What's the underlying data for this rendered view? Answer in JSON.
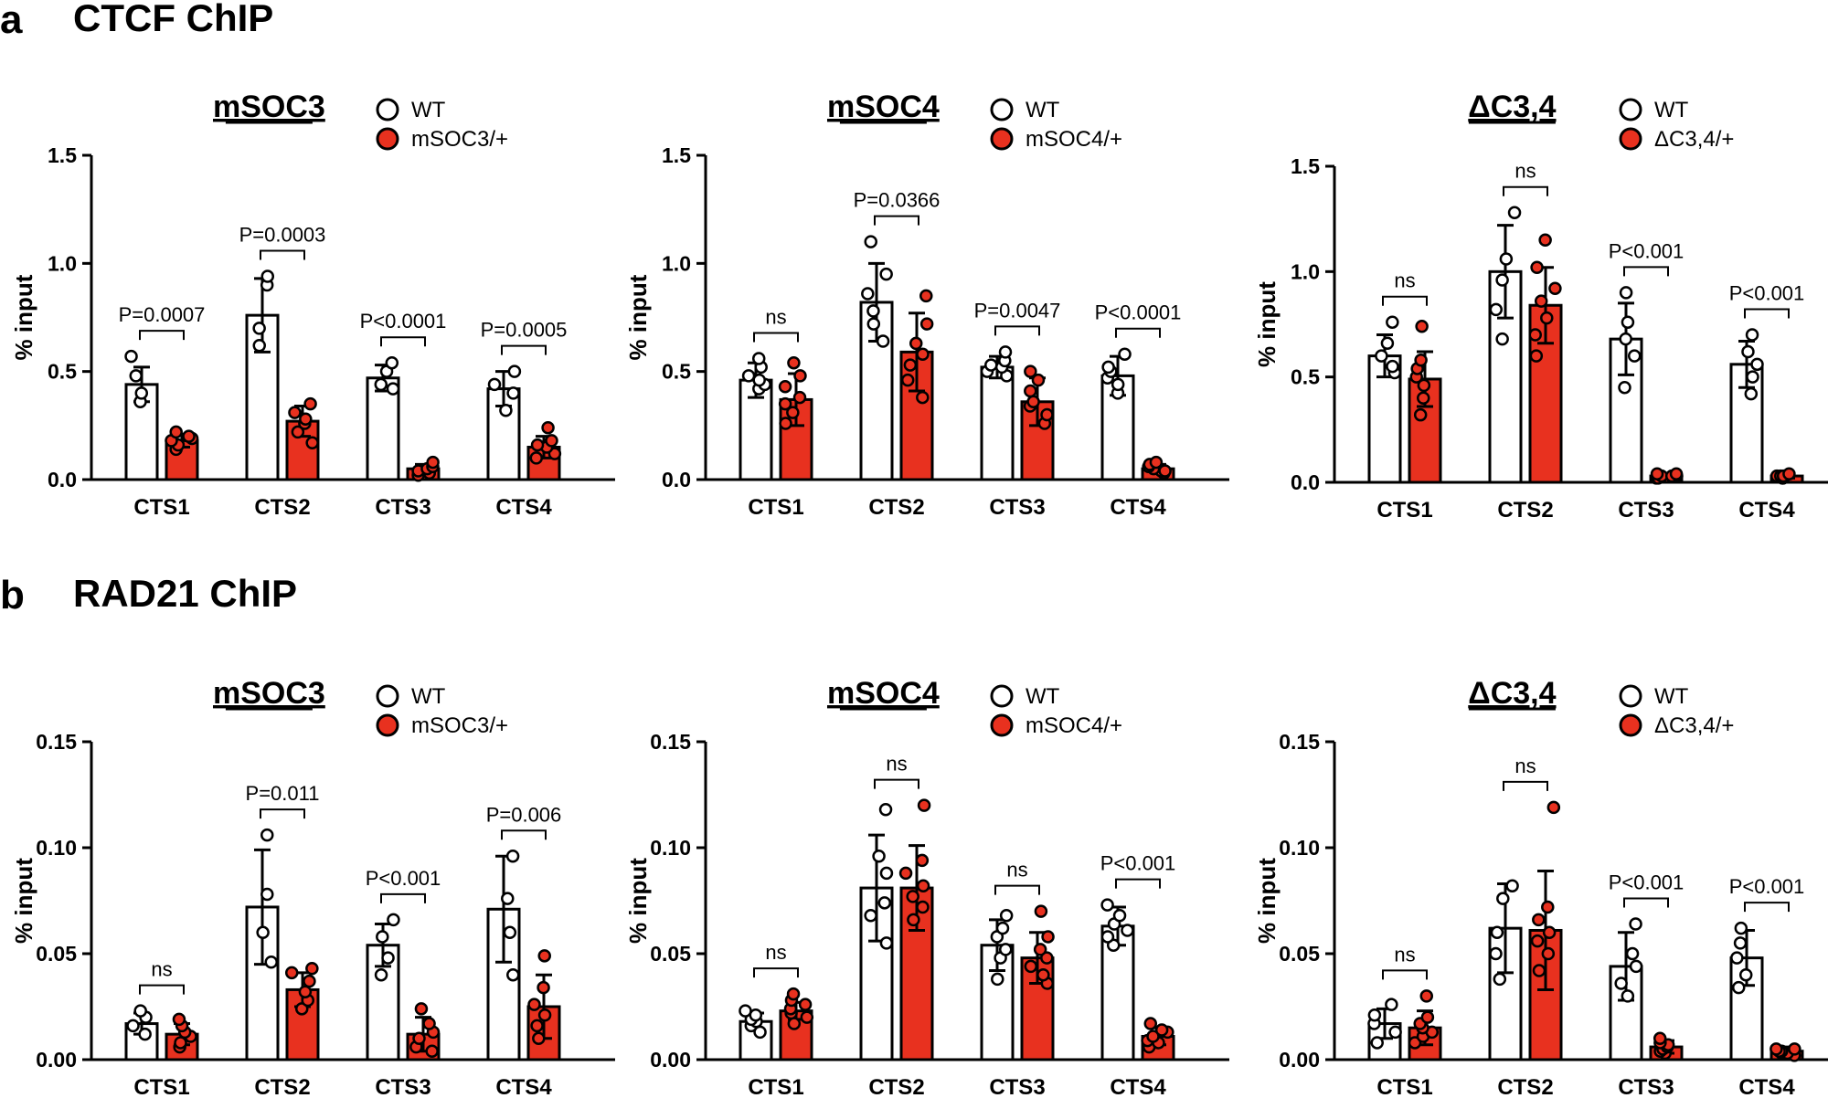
{
  "panels": [
    {
      "letter": "a",
      "title": "CTCF ChIP"
    },
    {
      "letter": "b",
      "title": "RAD21 ChIP"
    }
  ],
  "colors": {
    "wt": "#ffffff",
    "mut": "#e8311f",
    "stroke": "#000000"
  },
  "chart_data": [
    {
      "type": "bar",
      "panel": "a",
      "title": "mSOC3",
      "ylabel": "% input",
      "categories": [
        "CTS1",
        "CTS2",
        "CTS3",
        "CTS4"
      ],
      "ylim": [
        0,
        1.5
      ],
      "yticks": [
        0.0,
        0.5,
        1.0,
        1.5
      ],
      "ytick_labels": [
        "0.0",
        "0.5",
        "1.0",
        "1.5"
      ],
      "legend": [
        "WT",
        "mSOC3/+"
      ],
      "series": [
        {
          "name": "WT",
          "values": [
            0.44,
            0.76,
            0.47,
            0.42
          ],
          "sd": [
            0.08,
            0.17,
            0.06,
            0.08
          ],
          "points": [
            [
              0.36,
              0.4,
              0.48,
              0.57
            ],
            [
              0.62,
              0.7,
              0.9,
              0.94
            ],
            [
              0.42,
              0.44,
              0.5,
              0.54
            ],
            [
              0.32,
              0.4,
              0.44,
              0.5
            ]
          ]
        },
        {
          "name": "mSOC3/+",
          "values": [
            0.18,
            0.27,
            0.05,
            0.15
          ],
          "sd": [
            0.03,
            0.07,
            0.02,
            0.05
          ],
          "points": [
            [
              0.14,
              0.16,
              0.18,
              0.19,
              0.2,
              0.22
            ],
            [
              0.17,
              0.22,
              0.26,
              0.28,
              0.31,
              0.35
            ],
            [
              0.02,
              0.03,
              0.04,
              0.05,
              0.06,
              0.08
            ],
            [
              0.1,
              0.12,
              0.15,
              0.16,
              0.18,
              0.24
            ]
          ]
        }
      ],
      "comparisons": [
        "P=0.0007",
        "P=0.0003",
        "P<0.0001",
        "P=0.0005"
      ]
    },
    {
      "type": "bar",
      "panel": "a",
      "title": "mSOC4",
      "ylabel": "% input",
      "categories": [
        "CTS1",
        "CTS2",
        "CTS3",
        "CTS4"
      ],
      "ylim": [
        0,
        1.5
      ],
      "yticks": [
        0.0,
        0.5,
        1.0,
        1.5
      ],
      "ytick_labels": [
        "0.0",
        "0.5",
        "1.0",
        "1.5"
      ],
      "legend": [
        "WT",
        "mSOC4/+"
      ],
      "series": [
        {
          "name": "WT",
          "values": [
            0.46,
            0.82,
            0.52,
            0.48
          ],
          "sd": [
            0.08,
            0.18,
            0.05,
            0.09
          ],
          "points": [
            [
              0.42,
              0.44,
              0.46,
              0.48,
              0.52,
              0.56
            ],
            [
              0.64,
              0.72,
              0.78,
              0.86,
              0.95,
              1.1
            ],
            [
              0.48,
              0.5,
              0.52,
              0.53,
              0.55,
              0.59
            ],
            [
              0.4,
              0.44,
              0.47,
              0.5,
              0.52,
              0.58
            ]
          ]
        },
        {
          "name": "mSOC4/+",
          "values": [
            0.37,
            0.59,
            0.36,
            0.05
          ],
          "sd": [
            0.12,
            0.18,
            0.11,
            0.02
          ],
          "points": [
            [
              0.26,
              0.31,
              0.35,
              0.38,
              0.43,
              0.48,
              0.54
            ],
            [
              0.38,
              0.46,
              0.53,
              0.58,
              0.63,
              0.72,
              0.85
            ],
            [
              0.26,
              0.3,
              0.34,
              0.36,
              0.41,
              0.46,
              0.5
            ],
            [
              0.03,
              0.04,
              0.04,
              0.05,
              0.06,
              0.07,
              0.08
            ]
          ]
        }
      ],
      "comparisons": [
        "ns",
        "P=0.0366",
        "P=0.0047",
        "P<0.0001"
      ]
    },
    {
      "type": "bar",
      "panel": "a",
      "title": "ΔC3,4",
      "ylabel": "% input",
      "categories": [
        "CTS1",
        "CTS2",
        "CTS3",
        "CTS4"
      ],
      "ylim": [
        0,
        1.5
      ],
      "yticks": [
        0.0,
        0.5,
        1.0,
        1.5
      ],
      "ytick_labels": [
        "0.0",
        "0.5",
        "1.0",
        "1.5"
      ],
      "legend": [
        "WT",
        "ΔC3,4/+"
      ],
      "series": [
        {
          "name": "WT",
          "values": [
            0.6,
            1.0,
            0.68,
            0.56
          ],
          "sd": [
            0.1,
            0.22,
            0.17,
            0.11
          ],
          "points": [
            [
              0.52,
              0.55,
              0.6,
              0.66,
              0.76
            ],
            [
              0.68,
              0.82,
              0.96,
              1.06,
              1.28
            ],
            [
              0.45,
              0.6,
              0.68,
              0.76,
              0.9
            ],
            [
              0.42,
              0.5,
              0.56,
              0.62,
              0.7
            ]
          ]
        },
        {
          "name": "ΔC3,4/+",
          "values": [
            0.49,
            0.84,
            0.03,
            0.03
          ],
          "sd": [
            0.13,
            0.18,
            0.01,
            0.01
          ],
          "points": [
            [
              0.32,
              0.4,
              0.46,
              0.5,
              0.54,
              0.58,
              0.74
            ],
            [
              0.6,
              0.7,
              0.78,
              0.86,
              0.92,
              1.02,
              1.15
            ],
            [
              0.02,
              0.02,
              0.03,
              0.03,
              0.03,
              0.04,
              0.04
            ],
            [
              0.02,
              0.02,
              0.03,
              0.03,
              0.03,
              0.03,
              0.04
            ]
          ]
        }
      ],
      "comparisons": [
        "ns",
        "ns",
        "P<0.001",
        "P<0.001"
      ]
    },
    {
      "type": "bar",
      "panel": "b",
      "title": "mSOC3",
      "ylabel": "% input",
      "categories": [
        "CTS1",
        "CTS2",
        "CTS3",
        "CTS4"
      ],
      "ylim": [
        0,
        0.15
      ],
      "yticks": [
        0.0,
        0.05,
        0.1,
        0.15
      ],
      "ytick_labels": [
        "0.00",
        "0.05",
        "0.10",
        "0.15"
      ],
      "legend": [
        "WT",
        "mSOC3/+"
      ],
      "series": [
        {
          "name": "WT",
          "values": [
            0.017,
            0.072,
            0.054,
            0.071
          ],
          "sd": [
            0.005,
            0.027,
            0.01,
            0.025
          ],
          "points": [
            [
              0.012,
              0.016,
              0.02,
              0.023
            ],
            [
              0.046,
              0.06,
              0.078,
              0.106
            ],
            [
              0.04,
              0.048,
              0.058,
              0.066
            ],
            [
              0.04,
              0.06,
              0.076,
              0.096
            ]
          ]
        },
        {
          "name": "mSOC3/+",
          "values": [
            0.012,
            0.033,
            0.012,
            0.025
          ],
          "sd": [
            0.005,
            0.008,
            0.008,
            0.015
          ],
          "points": [
            [
              0.006,
              0.008,
              0.011,
              0.013,
              0.016,
              0.019
            ],
            [
              0.024,
              0.028,
              0.032,
              0.037,
              0.041,
              0.043
            ],
            [
              0.004,
              0.006,
              0.01,
              0.013,
              0.017,
              0.024
            ],
            [
              0.01,
              0.016,
              0.021,
              0.026,
              0.034,
              0.049
            ]
          ]
        }
      ],
      "comparisons": [
        "ns",
        "P=0.011",
        "P<0.001",
        "P=0.006"
      ]
    },
    {
      "type": "bar",
      "panel": "b",
      "title": "mSOC4",
      "ylabel": "% input",
      "categories": [
        "CTS1",
        "CTS2",
        "CTS3",
        "CTS4"
      ],
      "ylim": [
        0,
        0.15
      ],
      "yticks": [
        0.0,
        0.05,
        0.1,
        0.15
      ],
      "ytick_labels": [
        "0.00",
        "0.05",
        "0.10",
        "0.15"
      ],
      "legend": [
        "WT",
        "mSOC4/+"
      ],
      "series": [
        {
          "name": "WT",
          "values": [
            0.018,
            0.081,
            0.054,
            0.063
          ],
          "sd": [
            0.004,
            0.025,
            0.012,
            0.009
          ],
          "points": [
            [
              0.013,
              0.016,
              0.018,
              0.019,
              0.021,
              0.023
            ],
            [
              0.055,
              0.068,
              0.074,
              0.088,
              0.096,
              0.118
            ],
            [
              0.038,
              0.048,
              0.052,
              0.058,
              0.062,
              0.068
            ],
            [
              0.054,
              0.058,
              0.061,
              0.064,
              0.068,
              0.073
            ]
          ]
        },
        {
          "name": "mSOC4/+",
          "values": [
            0.023,
            0.081,
            0.048,
            0.011
          ],
          "sd": [
            0.004,
            0.02,
            0.012,
            0.004
          ],
          "points": [
            [
              0.017,
              0.02,
              0.022,
              0.024,
              0.026,
              0.028,
              0.031
            ],
            [
              0.066,
              0.072,
              0.077,
              0.082,
              0.088,
              0.094,
              0.12
            ],
            [
              0.036,
              0.04,
              0.044,
              0.048,
              0.052,
              0.058,
              0.07
            ],
            [
              0.006,
              0.008,
              0.009,
              0.011,
              0.013,
              0.014,
              0.017
            ]
          ]
        }
      ],
      "comparisons": [
        "ns",
        "ns",
        "ns",
        "P<0.001"
      ]
    },
    {
      "type": "bar",
      "panel": "b",
      "title": "ΔC3,4",
      "ylabel": "% input",
      "categories": [
        "CTS1",
        "CTS2",
        "CTS3",
        "CTS4"
      ],
      "ylim": [
        0,
        0.15
      ],
      "yticks": [
        0.0,
        0.05,
        0.1,
        0.15
      ],
      "ytick_labels": [
        "0.00",
        "0.05",
        "0.10",
        "0.15"
      ],
      "legend": [
        "WT",
        "ΔC3,4/+"
      ],
      "series": [
        {
          "name": "WT",
          "values": [
            0.017,
            0.062,
            0.044,
            0.048
          ],
          "sd": [
            0.007,
            0.021,
            0.016,
            0.013
          ],
          "points": [
            [
              0.008,
              0.013,
              0.017,
              0.021,
              0.026
            ],
            [
              0.038,
              0.05,
              0.06,
              0.076,
              0.082
            ],
            [
              0.03,
              0.036,
              0.044,
              0.05,
              0.064
            ],
            [
              0.034,
              0.04,
              0.048,
              0.055,
              0.062
            ]
          ]
        },
        {
          "name": "ΔC3,4/+",
          "values": [
            0.015,
            0.061,
            0.006,
            0.004
          ],
          "sd": [
            0.008,
            0.028,
            0.003,
            0.002
          ],
          "points": [
            [
              0.008,
              0.011,
              0.013,
              0.015,
              0.017,
              0.02,
              0.03
            ],
            [
              0.042,
              0.05,
              0.056,
              0.06,
              0.066,
              0.072,
              0.119
            ],
            [
              0.003,
              0.004,
              0.005,
              0.006,
              0.007,
              0.008,
              0.01
            ],
            [
              0.002,
              0.003,
              0.003,
              0.004,
              0.004,
              0.005,
              0.005
            ]
          ]
        }
      ],
      "comparisons": [
        "ns",
        "ns",
        "P<0.001",
        "P<0.001"
      ]
    }
  ]
}
